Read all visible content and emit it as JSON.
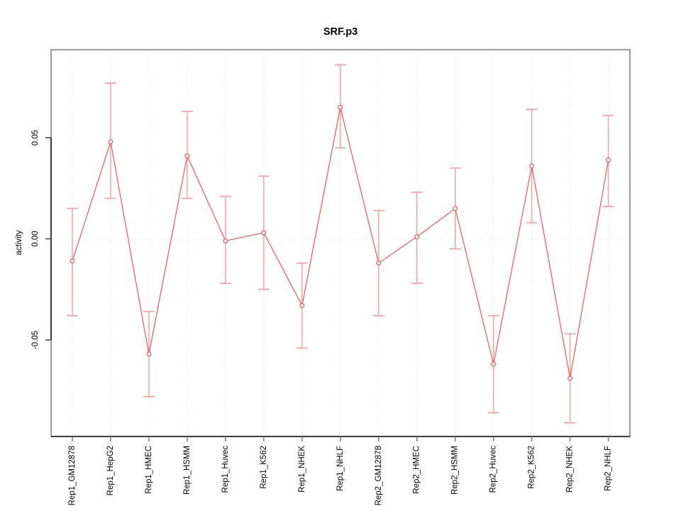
{
  "chart_data": {
    "type": "line",
    "title": "SRF.p3",
    "xlabel": "",
    "ylabel": "activity",
    "legend_position": "none",
    "grid": "vertical dotted gridline at each category; horizontal dotted line at y=0",
    "categories": [
      "Rep1_GM12878",
      "Rep1_HepG2",
      "Rep1_HMEC",
      "Rep1_HSMM",
      "Rep1_Huvec",
      "Rep1_K562",
      "Rep1_NHEK",
      "Rep1_NHLF",
      "Rep2_GM12878",
      "Rep2_HMEC",
      "Rep2_HSMM",
      "Rep2_Huvec",
      "Rep2_K562",
      "Rep2_NHEK",
      "Rep2_NHLF"
    ],
    "series": [
      {
        "name": "activity",
        "values": [
          -0.011,
          0.048,
          -0.057,
          0.041,
          -0.001,
          0.003,
          -0.033,
          0.065,
          -0.012,
          0.001,
          0.015,
          -0.062,
          0.036,
          -0.069,
          0.039
        ],
        "error_high": [
          0.015,
          0.077,
          -0.036,
          0.063,
          0.021,
          0.031,
          -0.012,
          0.086,
          0.014,
          0.023,
          0.035,
          -0.038,
          0.064,
          -0.047,
          0.061
        ],
        "error_low": [
          -0.038,
          0.02,
          -0.078,
          0.02,
          -0.022,
          -0.025,
          -0.054,
          0.045,
          -0.038,
          -0.022,
          -0.005,
          -0.086,
          0.008,
          -0.091,
          0.016
        ]
      }
    ],
    "yticks": [
      -0.05,
      0,
      0.05
    ],
    "ytick_labels": [
      "-0.05",
      "0.00",
      "0.05"
    ],
    "ylim": [
      -0.0976,
      0.0936
    ],
    "marker": "open-circle",
    "colors": {
      "line": "#f15555",
      "point_fill": "#ffffff",
      "errorbar": "#fa9a9a",
      "grid": "#e2e2e2",
      "zero_line": "#e8e8e8",
      "frame": "#9b9b9b",
      "axis": "#3c3c3c",
      "tick": "#7a7a7a",
      "text": "#000000",
      "background": "#ffffff"
    }
  }
}
